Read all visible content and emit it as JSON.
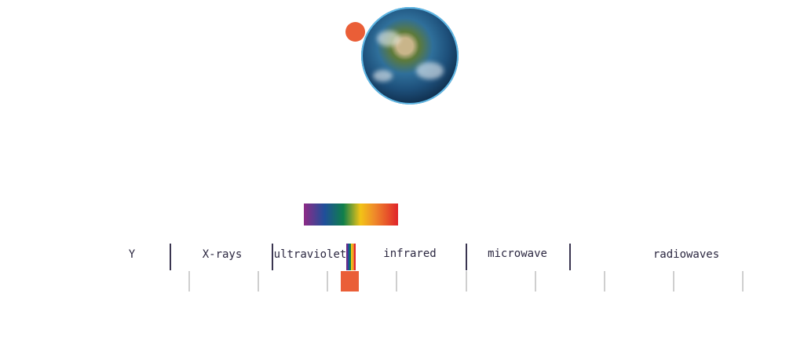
{
  "colors": {
    "accent": "#ea5e37",
    "divider": "#3a3550",
    "tick": "#cfcfcf"
  },
  "illustration": {
    "planet": "earth-icon",
    "indicator": "orange-dot"
  },
  "bands": [
    {
      "label": "Y"
    },
    {
      "label": "X-rays"
    },
    {
      "label": "ultraviolet"
    },
    {
      "label": "infrared"
    },
    {
      "label": "microwave"
    },
    {
      "label": "radiowaves"
    }
  ]
}
